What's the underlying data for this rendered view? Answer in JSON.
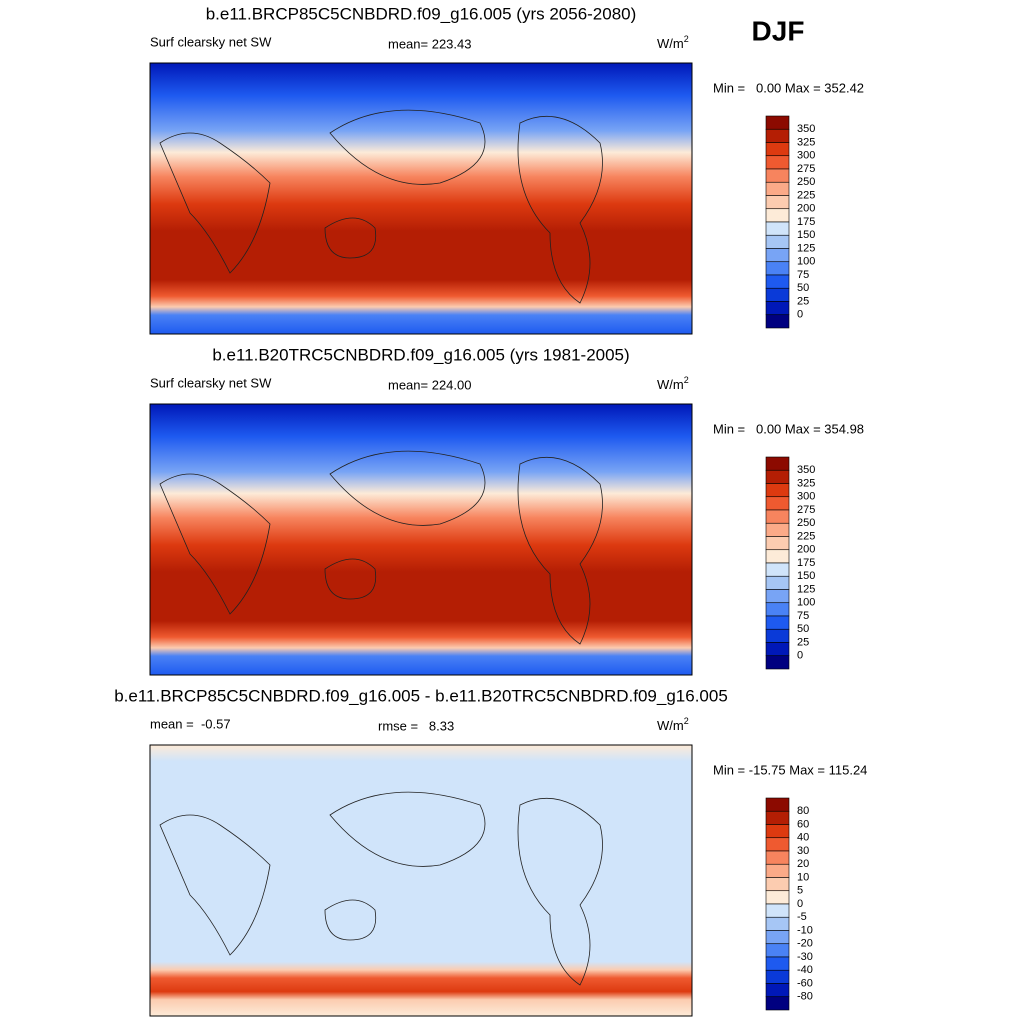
{
  "season": "DJF",
  "panels": [
    {
      "title": "b.e11.BRCP85C5CNBDRD.f09_g16.005 (yrs 2056-2080)",
      "left_label": "Surf clearsky net SW",
      "center_label": "mean= 223.43",
      "units": {
        "base": "W/m",
        "exponent": "2"
      },
      "min_max": "Min =   0.00 Max = 352.42",
      "colorbar": {
        "labels": [
          350,
          325,
          300,
          275,
          250,
          225,
          200,
          175,
          150,
          125,
          100,
          75,
          50,
          25,
          0
        ],
        "colors": [
          "#8c0a00",
          "#b41e04",
          "#dd3a10",
          "#ef5a30",
          "#f7845e",
          "#fbaa88",
          "#fcccb0",
          "#fdebd8",
          "#d0e4fa",
          "#a6c6f5",
          "#78a4f5",
          "#4a82f5",
          "#1e5af0",
          "#0a3ad8",
          "#0018b8",
          "#000080"
        ]
      }
    },
    {
      "title": "b.e11.B20TRC5CNBDRD.f09_g16.005 (yrs 1981-2005)",
      "left_label": "Surf clearsky net SW",
      "center_label": "mean= 224.00",
      "units": {
        "base": "W/m",
        "exponent": "2"
      },
      "min_max": "Min =   0.00 Max = 354.98",
      "colorbar": {
        "labels": [
          350,
          325,
          300,
          275,
          250,
          225,
          200,
          175,
          150,
          125,
          100,
          75,
          50,
          25,
          0
        ],
        "colors": [
          "#8c0a00",
          "#b41e04",
          "#dd3a10",
          "#ef5a30",
          "#f7845e",
          "#fbaa88",
          "#fcccb0",
          "#fdebd8",
          "#d0e4fa",
          "#a6c6f5",
          "#78a4f5",
          "#4a82f5",
          "#1e5af0",
          "#0a3ad8",
          "#0018b8",
          "#000080"
        ]
      }
    },
    {
      "title": "b.e11.BRCP85C5CNBDRD.f09_g16.005 - b.e11.B20TRC5CNBDRD.f09_g16.005",
      "left_label": "mean =  -0.57",
      "center_label": "rmse =   8.33",
      "units": {
        "base": "W/m",
        "exponent": "2"
      },
      "min_max": "Min = -15.75 Max = 115.24",
      "colorbar": {
        "labels": [
          80,
          60,
          40,
          30,
          20,
          10,
          5,
          0,
          -5,
          -10,
          -20,
          -30,
          -40,
          -60,
          -80
        ],
        "colors": [
          "#8c0a00",
          "#b41e04",
          "#dd3a10",
          "#ef5a30",
          "#f7845e",
          "#fbaa88",
          "#fcccb0",
          "#fdebd8",
          "#d0e4fa",
          "#a6c6f5",
          "#78a4f5",
          "#4a82f5",
          "#1e5af0",
          "#0a3ad8",
          "#0018b8",
          "#000080"
        ]
      }
    }
  ]
}
